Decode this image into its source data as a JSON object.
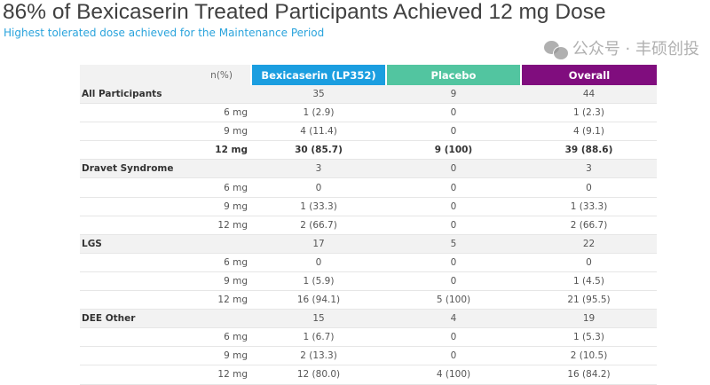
{
  "title": "86% of Bexicaserin Treated Participants Achieved 12 mg Dose",
  "subtitle": "Highest tolerated dose achieved for the Maintenance Period",
  "table": {
    "header": {
      "label": "n(%)",
      "columns": [
        {
          "label": "Bexicaserin (LP352)",
          "color": "#1b9ee0"
        },
        {
          "label": "Placebo",
          "color": "#52c5a0"
        },
        {
          "label": "Overall",
          "color": "#800d7e"
        }
      ]
    },
    "groups": [
      {
        "name": "All Participants",
        "values": [
          "35",
          "9",
          "44"
        ],
        "rows": [
          {
            "dose": "6 mg",
            "values": [
              "1 (2.9)",
              "0",
              "1 (2.3)"
            ]
          },
          {
            "dose": "9 mg",
            "values": [
              "4 (11.4)",
              "0",
              "4 (9.1)"
            ]
          },
          {
            "dose": "12 mg",
            "values": [
              "30 (85.7)",
              "9 (100)",
              "39 (88.6)"
            ],
            "bold": true
          }
        ]
      },
      {
        "name": "Dravet Syndrome",
        "values": [
          "3",
          "0",
          "3"
        ],
        "rows": [
          {
            "dose": "6 mg",
            "values": [
              "0",
              "0",
              "0"
            ]
          },
          {
            "dose": "9 mg",
            "values": [
              "1 (33.3)",
              "0",
              "1 (33.3)"
            ]
          },
          {
            "dose": "12 mg",
            "values": [
              "2 (66.7)",
              "0",
              "2 (66.7)"
            ]
          }
        ]
      },
      {
        "name": "LGS",
        "values": [
          "17",
          "5",
          "22"
        ],
        "rows": [
          {
            "dose": "6 mg",
            "values": [
              "0",
              "0",
              "0"
            ]
          },
          {
            "dose": "9 mg",
            "values": [
              "1 (5.9)",
              "0",
              "1 (4.5)"
            ]
          },
          {
            "dose": "12 mg",
            "values": [
              "16 (94.1)",
              "5 (100)",
              "21 (95.5)"
            ]
          }
        ]
      },
      {
        "name": "DEE Other",
        "values": [
          "15",
          "4",
          "19"
        ],
        "rows": [
          {
            "dose": "6 mg",
            "values": [
              "1 (6.7)",
              "0",
              "1 (5.3)"
            ]
          },
          {
            "dose": "9 mg",
            "values": [
              "2 (13.3)",
              "0",
              "2 (10.5)"
            ]
          },
          {
            "dose": "12 mg",
            "values": [
              "12 (80.0)",
              "4 (100)",
              "16 (84.2)"
            ]
          }
        ]
      }
    ]
  },
  "watermark": "公众号 · 丰硕创投"
}
